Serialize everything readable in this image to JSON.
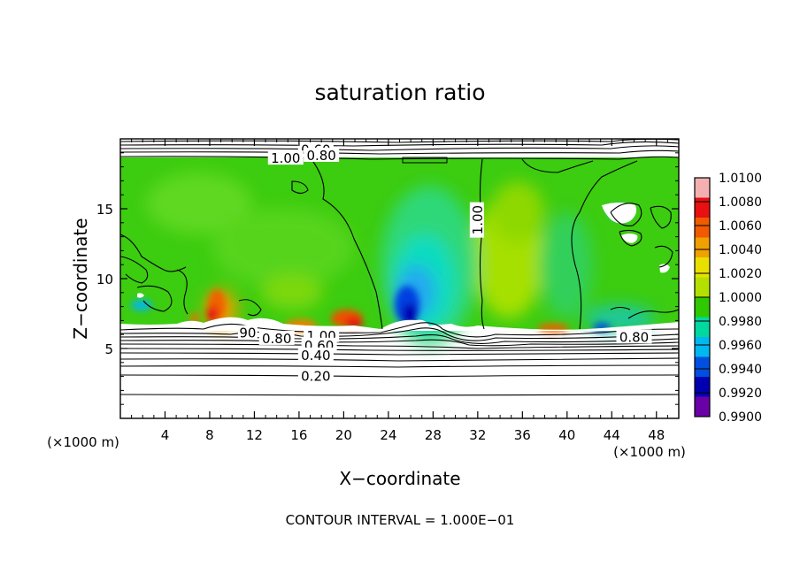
{
  "chart_data": {
    "type": "heatmap",
    "title": "saturation ratio",
    "xlabel": "X−coordinate",
    "ylabel": "Z−coordinate",
    "x_unit": "(×1000 m)",
    "y_unit": "(×1000 m)",
    "xlim": [
      0,
      50
    ],
    "ylim": [
      0,
      20
    ],
    "x_ticks": [
      4,
      8,
      12,
      16,
      20,
      24,
      28,
      32,
      36,
      40,
      44,
      48
    ],
    "y_ticks": [
      5,
      10,
      15
    ],
    "footer": "CONTOUR INTERVAL = 1.000E−01",
    "colorbar": {
      "levels": [
        "1.0100",
        "1.0080",
        "1.0060",
        "1.0040",
        "1.0020",
        "1.0000",
        "0.9980",
        "0.9960",
        "0.9940",
        "0.9920",
        "0.9900"
      ],
      "colors": [
        "#f4b0b0",
        "#e81010",
        "#f05a00",
        "#f0a000",
        "#e8e000",
        "#b4e000",
        "#30c800",
        "#00d8a0",
        "#00b8f0",
        "#0050e0",
        "#0000b0",
        "#6a00a8"
      ]
    },
    "contour_labels": [
      {
        "text": "0.60",
        "x": 17.5,
        "z": 19.2
      },
      {
        "text": "1.00",
        "x": 14.8,
        "z": 18.6
      },
      {
        "text": "0.80",
        "x": 18.0,
        "z": 18.8
      },
      {
        "text": "1.00",
        "x": 32.0,
        "z": 14.2
      },
      {
        "text": "1.00",
        "x": 18.0,
        "z": 5.9
      },
      {
        "text": "0.80",
        "x": 14.0,
        "z": 5.7
      },
      {
        "text": "0.60",
        "x": 17.8,
        "z": 5.2
      },
      {
        "text": "0.40",
        "x": 17.5,
        "z": 4.5
      },
      {
        "text": "0.20",
        "x": 17.5,
        "z": 3.0
      },
      {
        "text": "0.80",
        "x": 46.0,
        "z": 5.8
      },
      {
        "text": "90",
        "x": 11.4,
        "z": 6.1
      }
    ],
    "contour_levels_below": [
      0.1,
      0.2,
      0.3,
      0.4,
      0.5,
      0.6,
      0.7,
      0.8,
      0.9,
      1.0
    ],
    "cloud_region": {
      "z_bottom": 6.2,
      "z_top": 18.6
    }
  }
}
